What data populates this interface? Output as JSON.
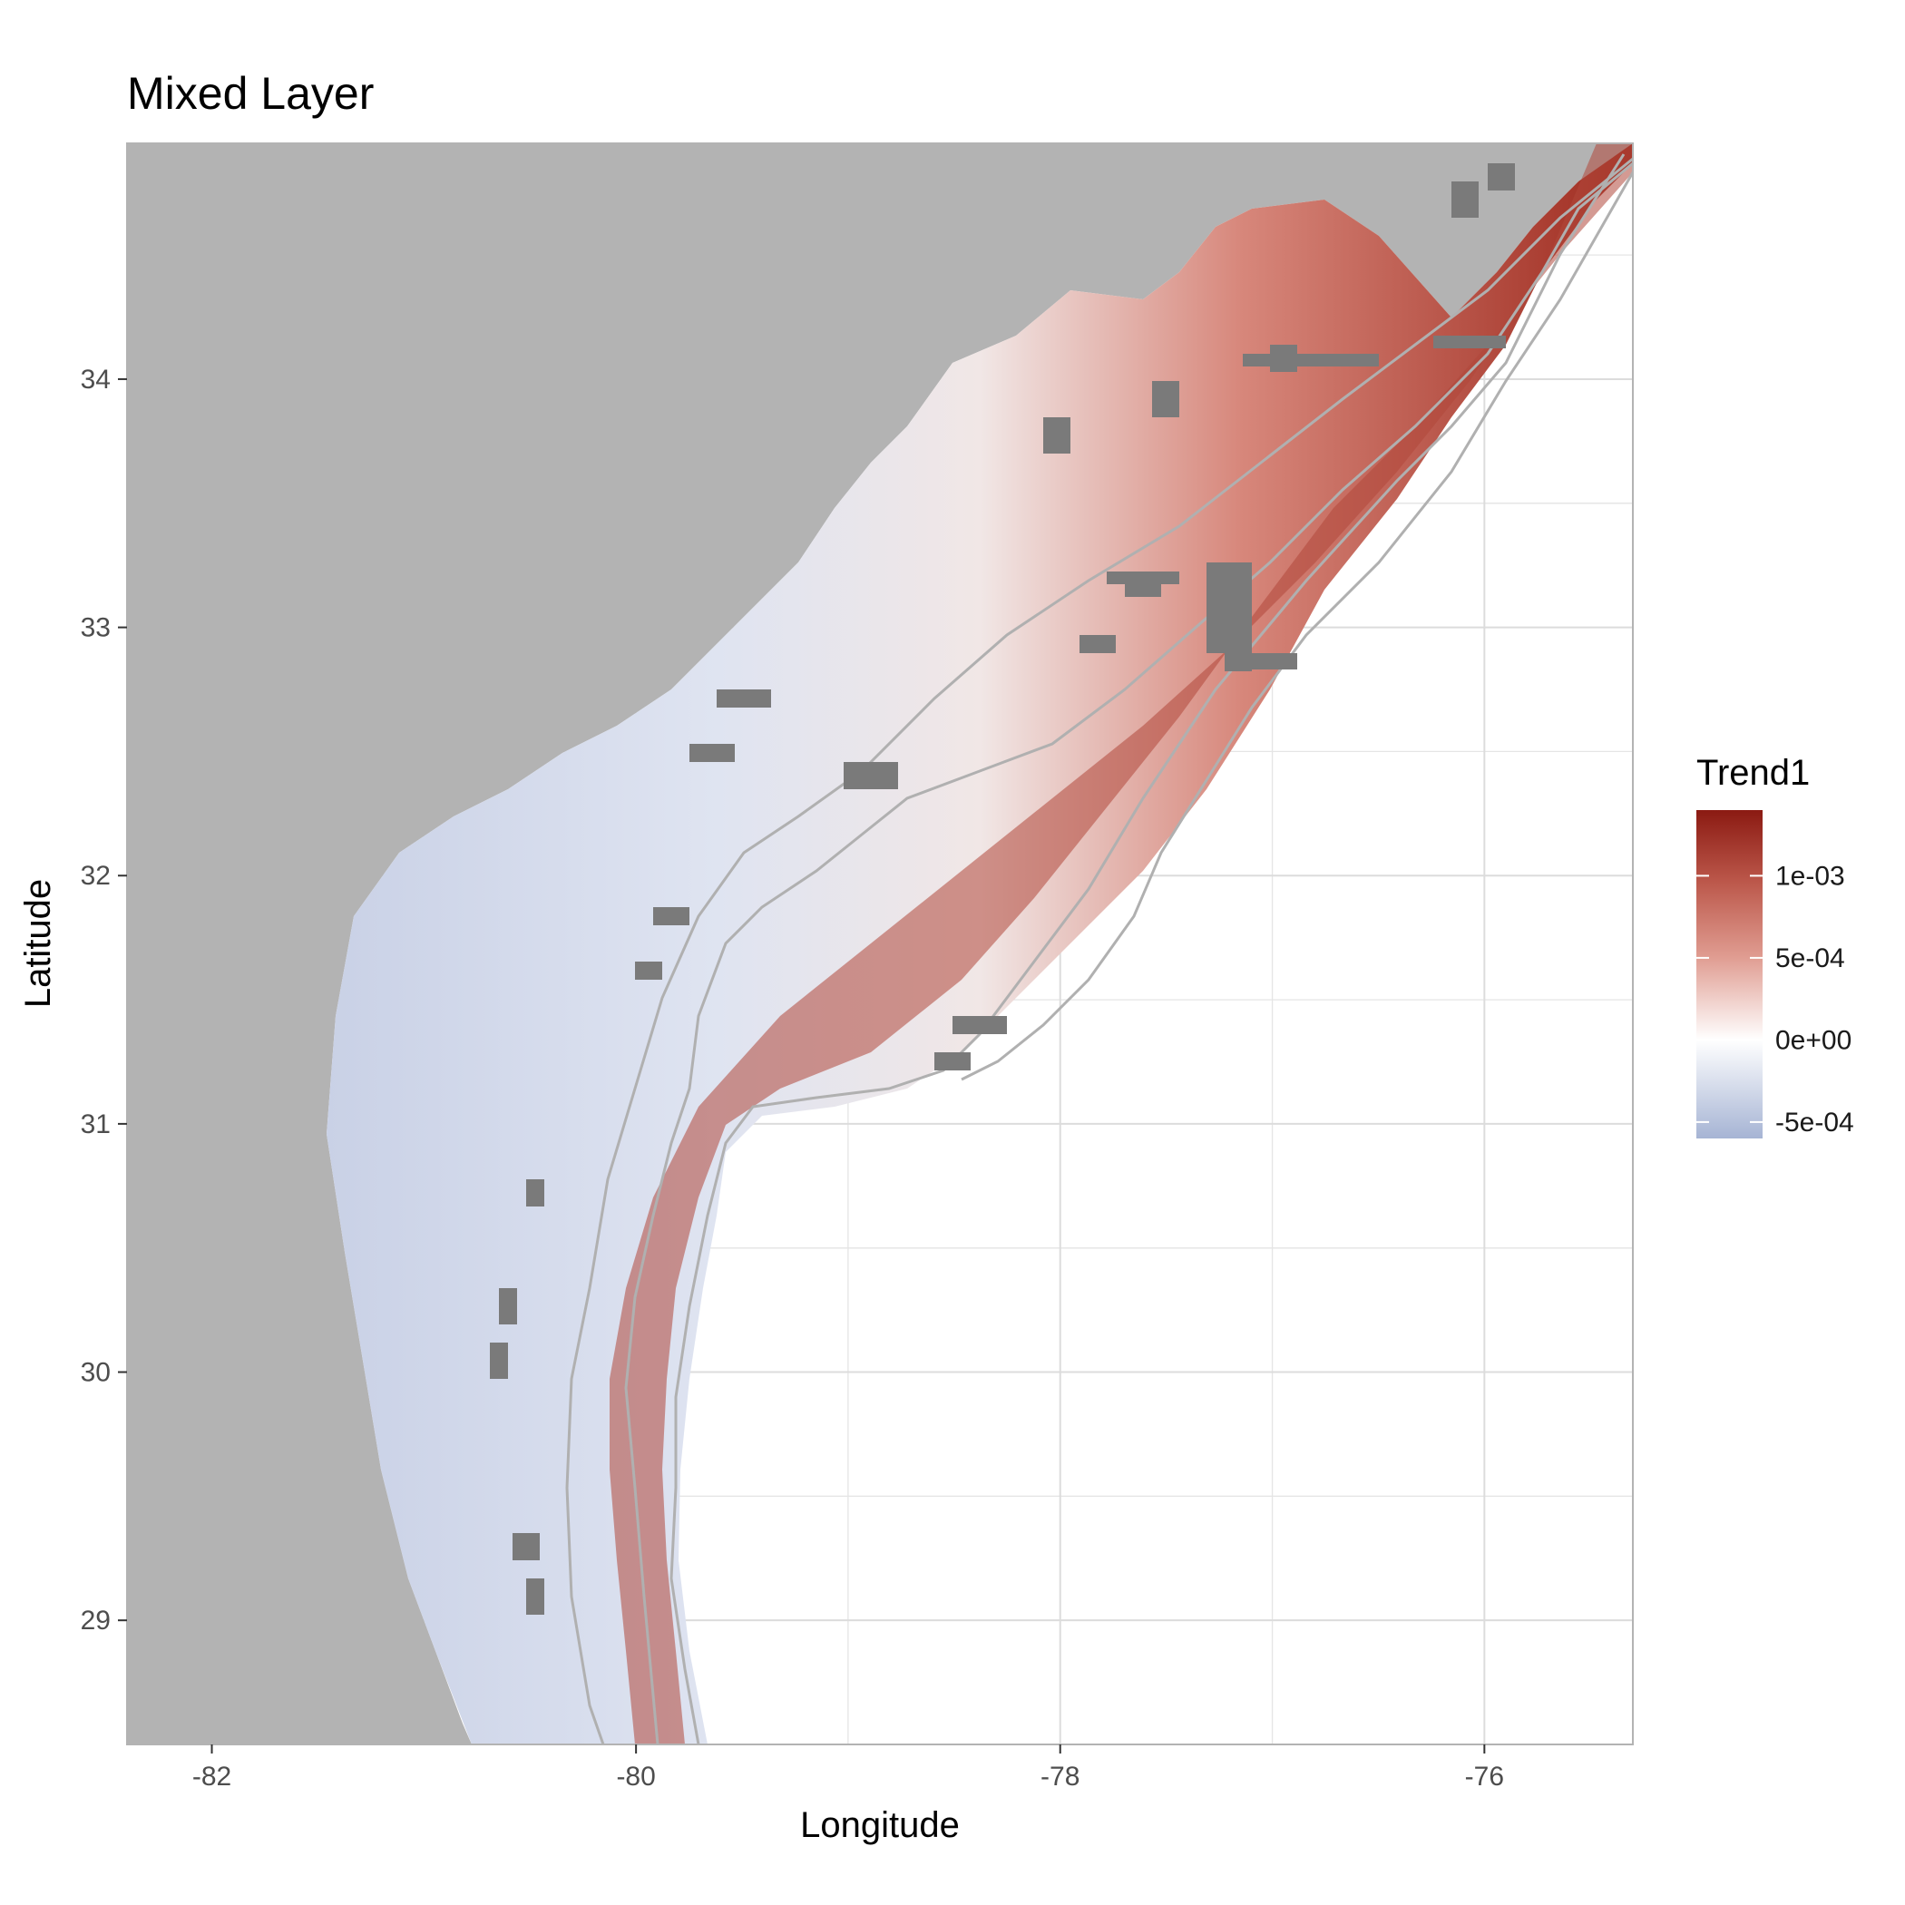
{
  "map": {
    "title": "Mixed Layer",
    "xlabel": "Longitude",
    "ylabel": "Latitude",
    "xlim": [
      -82.4,
      -75.3
    ],
    "ylim": [
      28.5,
      34.95
    ],
    "x_ticks": [
      {
        "value": -82,
        "label": "-82"
      },
      {
        "value": -80,
        "label": "-80"
      },
      {
        "value": -78,
        "label": "-78"
      },
      {
        "value": -76,
        "label": "-76"
      }
    ],
    "y_ticks": [
      {
        "value": 29,
        "label": "29"
      },
      {
        "value": 30,
        "label": "30"
      },
      {
        "value": 31,
        "label": "31"
      },
      {
        "value": 32,
        "label": "32"
      },
      {
        "value": 33,
        "label": "33"
      },
      {
        "value": 34,
        "label": "34"
      }
    ],
    "grid": true,
    "colors": {
      "land": "#b3b3b3",
      "ocean_background": "#ffffff",
      "contour": "#b0b0b0",
      "missing_cells": "#7a7a7a",
      "grid": "#e5e5e5",
      "low": "#a6b4d4",
      "mid": "#ffffff",
      "high": "#8b1a12"
    },
    "legend": {
      "title": "Trend1",
      "placement": "right",
      "range": [
        -0.0006,
        0.0014
      ],
      "entries": [
        {
          "value": 0.001,
          "label": "1e-03"
        },
        {
          "value": 0.0005,
          "label": "5e-04"
        },
        {
          "value": 0.0,
          "label": "0e+00"
        },
        {
          "value": -0.0005,
          "label": "-5e-04"
        }
      ]
    }
  }
}
